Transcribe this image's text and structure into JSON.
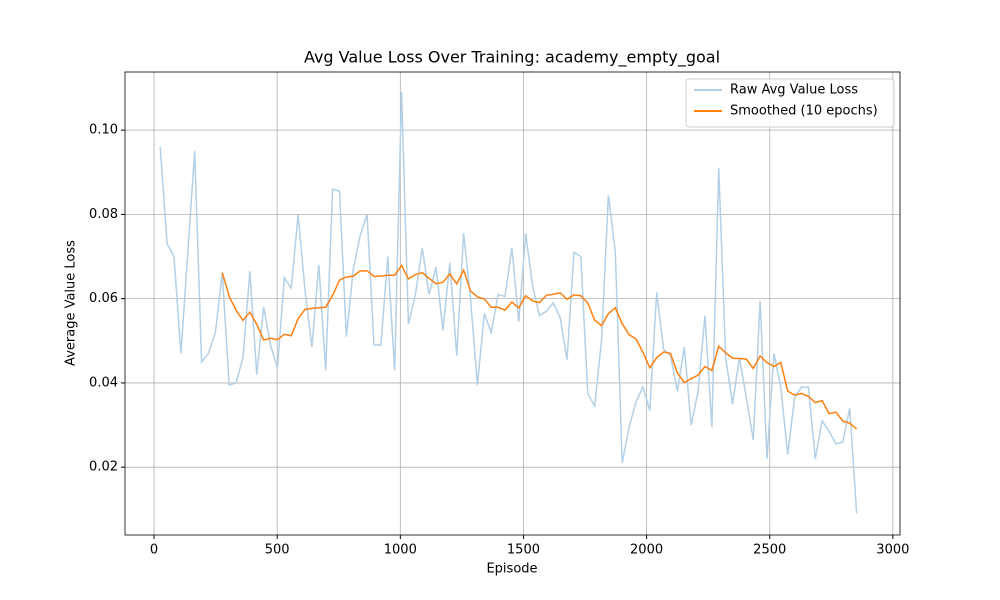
{
  "chart_data": {
    "type": "line",
    "title": "Avg Value Loss Over Training: academy_empty_goal",
    "x_label": "Episode",
    "y_label": "Average Value Loss",
    "x": [
      25,
      53,
      81,
      109,
      137,
      165,
      193,
      221,
      249,
      277,
      305,
      333,
      361,
      389,
      417,
      445,
      473,
      501,
      529,
      557,
      585,
      613,
      641,
      669,
      697,
      725,
      753,
      781,
      809,
      837,
      865,
      893,
      921,
      949,
      977,
      1005,
      1033,
      1061,
      1089,
      1117,
      1145,
      1173,
      1201,
      1229,
      1257,
      1285,
      1313,
      1341,
      1369,
      1397,
      1425,
      1453,
      1481,
      1509,
      1537,
      1565,
      1593,
      1621,
      1649,
      1677,
      1705,
      1733,
      1761,
      1789,
      1817,
      1845,
      1873,
      1901,
      1929,
      1957,
      1985,
      2013,
      2041,
      2069,
      2097,
      2125,
      2153,
      2181,
      2209,
      2237,
      2265,
      2293,
      2321,
      2349,
      2377,
      2405,
      2433,
      2461,
      2489,
      2517,
      2545,
      2573,
      2601,
      2629,
      2657,
      2685,
      2713,
      2741,
      2769,
      2797,
      2825,
      2853
    ],
    "series": [
      {
        "name": "Raw Avg Value Loss",
        "color": "#b3d0e6",
        "values": [
          0.096,
          0.073,
          0.07,
          0.047,
          0.071,
          0.095,
          0.045,
          0.047,
          0.052,
          0.066,
          0.0395,
          0.04,
          0.046,
          0.0665,
          0.042,
          0.058,
          0.049,
          0.0435,
          0.065,
          0.0625,
          0.08,
          0.062,
          0.0485,
          0.068,
          0.043,
          0.086,
          0.0855,
          0.051,
          0.067,
          0.075,
          0.08,
          0.049,
          0.049,
          0.07,
          0.043,
          0.109,
          0.054,
          0.061,
          0.072,
          0.061,
          0.0675,
          0.0525,
          0.0685,
          0.0465,
          0.0755,
          0.06,
          0.0395,
          0.0565,
          0.052,
          0.061,
          0.0605,
          0.072,
          0.0545,
          0.0755,
          0.063,
          0.056,
          0.057,
          0.059,
          0.0555,
          0.0455,
          0.071,
          0.07,
          0.0375,
          0.0345,
          0.05,
          0.0845,
          0.071,
          0.021,
          0.0295,
          0.0355,
          0.039,
          0.0335,
          0.0615,
          0.048,
          0.0465,
          0.038,
          0.0485,
          0.03,
          0.038,
          0.056,
          0.0295,
          0.091,
          0.046,
          0.035,
          0.046,
          0.0365,
          0.0265,
          0.0595,
          0.022,
          0.047,
          0.039,
          0.023,
          0.0365,
          0.039,
          0.039,
          0.022,
          0.031,
          0.0285,
          0.0255,
          0.026,
          0.034,
          0.009
        ]
      },
      {
        "name": "Smoothed (10 epochs)",
        "color": "#ff7f0e",
        "values": [
          null,
          null,
          null,
          null,
          null,
          null,
          null,
          null,
          null,
          0.0662,
          0.06055,
          0.05725,
          0.05485,
          0.0568,
          0.0539,
          0.0502,
          0.0506,
          0.05025,
          0.05155,
          0.0512,
          0.05525,
          0.05745,
          0.0577,
          0.05785,
          0.05795,
          0.06075,
          0.0644,
          0.06515,
          0.06535,
          0.0666,
          0.0666,
          0.0653,
          0.06535,
          0.06555,
          0.06555,
          0.06785,
          0.0647,
          0.0657,
          0.0662,
          0.0648,
          0.06355,
          0.0639,
          0.06585,
          0.0635,
          0.06675,
          0.06185,
          0.0604,
          0.05995,
          0.05795,
          0.05795,
          0.05725,
          0.0592,
          0.0578,
          0.0607,
          0.05945,
          0.05905,
          0.0608,
          0.06105,
          0.0614,
          0.05985,
          0.0609,
          0.0607,
          0.059,
          0.0549,
          0.0536,
          0.05645,
          0.05785,
          0.05405,
          0.05145,
          0.05045,
          0.04725,
          0.0436,
          0.046,
          0.04735,
          0.047,
          0.04235,
          0.0401,
          0.041,
          0.04185,
          0.0439,
          0.04295,
          0.0487,
          0.04715,
          0.04585,
          0.0458,
          0.04565,
          0.04345,
          0.0464,
          0.0448,
          0.0439,
          0.04485,
          0.03805,
          0.0371,
          0.0375,
          0.0368,
          0.03535,
          0.0358,
          0.0327,
          0.03305,
          0.03095,
          0.03045,
          0.02905
        ]
      }
    ],
    "xlim": [
      -118,
      3029
    ],
    "ylim": [
      0.0039,
      0.1138
    ],
    "xticks": [
      0,
      500,
      1000,
      1500,
      2000,
      2500,
      3000
    ],
    "yticks": [
      0.02,
      0.04,
      0.06,
      0.08,
      {
        "value": 0.1,
        "label": "0.10"
      }
    ],
    "grid": true,
    "legend": "upper right"
  }
}
